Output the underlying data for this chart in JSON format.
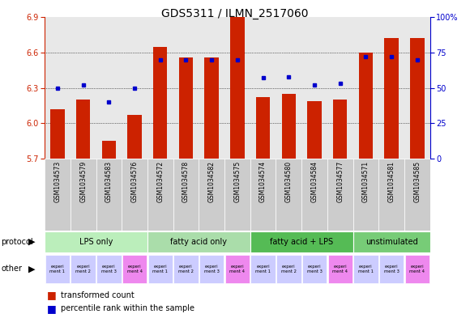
{
  "title": "GDS5311 / ILMN_2517060",
  "samples": [
    "GSM1034573",
    "GSM1034579",
    "GSM1034583",
    "GSM1034576",
    "GSM1034572",
    "GSM1034578",
    "GSM1034582",
    "GSM1034575",
    "GSM1034574",
    "GSM1034580",
    "GSM1034584",
    "GSM1034577",
    "GSM1034571",
    "GSM1034581",
    "GSM1034585"
  ],
  "transformed_count": [
    6.12,
    6.2,
    5.85,
    6.07,
    6.65,
    6.56,
    6.56,
    6.9,
    6.22,
    6.25,
    6.19,
    6.2,
    6.6,
    6.72,
    6.72
  ],
  "percentile_rank": [
    50,
    52,
    40,
    50,
    70,
    70,
    70,
    70,
    57,
    58,
    52,
    53,
    72,
    72,
    70
  ],
  "bar_color": "#cc2200",
  "dot_color": "#0000cc",
  "baseline": 5.7,
  "ylim_left": [
    5.7,
    6.9
  ],
  "ylim_right": [
    0,
    100
  ],
  "yticks_left": [
    5.7,
    6.0,
    6.3,
    6.6,
    6.9
  ],
  "yticks_right": [
    0,
    25,
    50,
    75,
    100
  ],
  "grid_values": [
    6.0,
    6.3,
    6.6
  ],
  "protocol_groups": [
    {
      "label": "LPS only",
      "start": 0,
      "end": 4,
      "color": "#bbeebb"
    },
    {
      "label": "fatty acid only",
      "start": 4,
      "end": 8,
      "color": "#aaddaa"
    },
    {
      "label": "fatty acid + LPS",
      "start": 8,
      "end": 12,
      "color": "#55bb55"
    },
    {
      "label": "unstimulated",
      "start": 12,
      "end": 15,
      "color": "#77cc77"
    }
  ],
  "other_labels": [
    "experi\nment 1",
    "experi\nment 2",
    "experi\nment 3",
    "experi\nment 4",
    "experi\nment 1",
    "experi\nment 2",
    "experi\nment 3",
    "experi\nment 4",
    "experi\nment 1",
    "experi\nment 2",
    "experi\nment 3",
    "experi\nment 4",
    "experi\nment 1",
    "experi\nment 3",
    "experi\nment 4"
  ],
  "other_colors": [
    "#ccccff",
    "#ccccff",
    "#ccccff",
    "#ee88ee",
    "#ccccff",
    "#ccccff",
    "#ccccff",
    "#ee88ee",
    "#ccccff",
    "#ccccff",
    "#ccccff",
    "#ee88ee",
    "#ccccff",
    "#ccccff",
    "#ee88ee"
  ],
  "left_axis_color": "#cc2200",
  "right_axis_color": "#0000cc",
  "chart_bg": "#e8e8e8",
  "bar_width": 0.55
}
